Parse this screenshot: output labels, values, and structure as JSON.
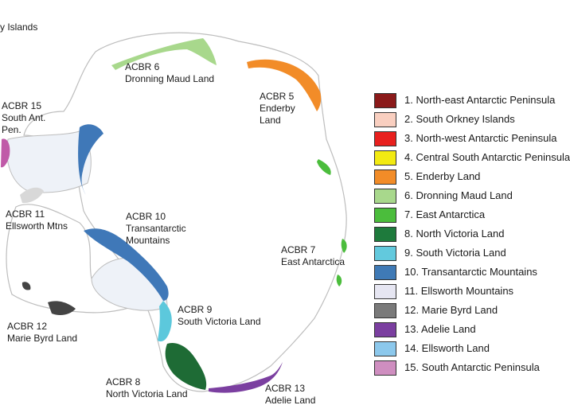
{
  "map": {
    "top_left_label": "y Islands",
    "regions": [
      {
        "id": "acbr6",
        "lines": [
          "ACBR 6",
          "Dronning Maud Land"
        ]
      },
      {
        "id": "acbr5",
        "lines": [
          "ACBR 5",
          "Enderby",
          "Land"
        ]
      },
      {
        "id": "acbr15",
        "lines": [
          "ACBR 15",
          "South Ant.",
          "Pen."
        ]
      },
      {
        "id": "acbr11",
        "lines": [
          "ACBR 11",
          "Ellsworth Mtns"
        ]
      },
      {
        "id": "acbr10",
        "lines": [
          "ACBR 10",
          "Transantarctic",
          "Mountains"
        ]
      },
      {
        "id": "acbr7",
        "lines": [
          "ACBR 7",
          "East Antarctica"
        ]
      },
      {
        "id": "acbr9",
        "lines": [
          "ACBR 9",
          "South Victoria Land"
        ]
      },
      {
        "id": "acbr12",
        "lines": [
          "ACBR 12",
          "Marie Byrd Land"
        ]
      },
      {
        "id": "acbr8",
        "lines": [
          "ACBR 8",
          "North Victoria Land"
        ]
      },
      {
        "id": "acbr13",
        "lines": [
          "ACBR 13",
          "Adelie Land"
        ]
      }
    ],
    "colors": {
      "coast": "#bdbdbd",
      "ice_shelf": "#eef2f8",
      "acbr5": "#f28c28",
      "acbr6": "#a8d88c",
      "acbr7": "#4bbd3c",
      "acbr8": "#1e6b35",
      "acbr9": "#5cc8dc",
      "acbr10": "#3f78b8",
      "acbr11": "#d8d8d8",
      "acbr12": "#444444",
      "acbr13": "#7b3fa0",
      "acbr15": "#c05aa8"
    }
  },
  "legend": [
    {
      "label": "1. North-east Antarctic Peninsula",
      "color": "#8b1a1a"
    },
    {
      "label": "2. South Orkney Islands",
      "color": "#f9cfc0"
    },
    {
      "label": "3. North-west Antarctic Peninsula",
      "color": "#e8201e"
    },
    {
      "label": "4. Central South Antarctic Peninsula",
      "color": "#f2ea12"
    },
    {
      "label": "5. Enderby Land",
      "color": "#f28c28"
    },
    {
      "label": "6. Dronning Maud Land",
      "color": "#a8d88c"
    },
    {
      "label": "7. East Antarctica",
      "color": "#4bbd3c"
    },
    {
      "label": "8. North Victoria Land",
      "color": "#1e7a3c"
    },
    {
      "label": "9. South Victoria Land",
      "color": "#62c9dd"
    },
    {
      "label": "10. Transantarctic Mountains",
      "color": "#3f7ab6"
    },
    {
      "label": "11. Ellsworth Mountains",
      "color": "#e6e6f2"
    },
    {
      "label": "12. Marie Byrd Land",
      "color": "#7a7a7a"
    },
    {
      "label": "13. Adelie Land",
      "color": "#7b3fa0"
    },
    {
      "label": "14. Ellsworth Land",
      "color": "#8cc8ec"
    },
    {
      "label": "15. South Antarctic Peninsula",
      "color": "#cf8ec0"
    }
  ]
}
